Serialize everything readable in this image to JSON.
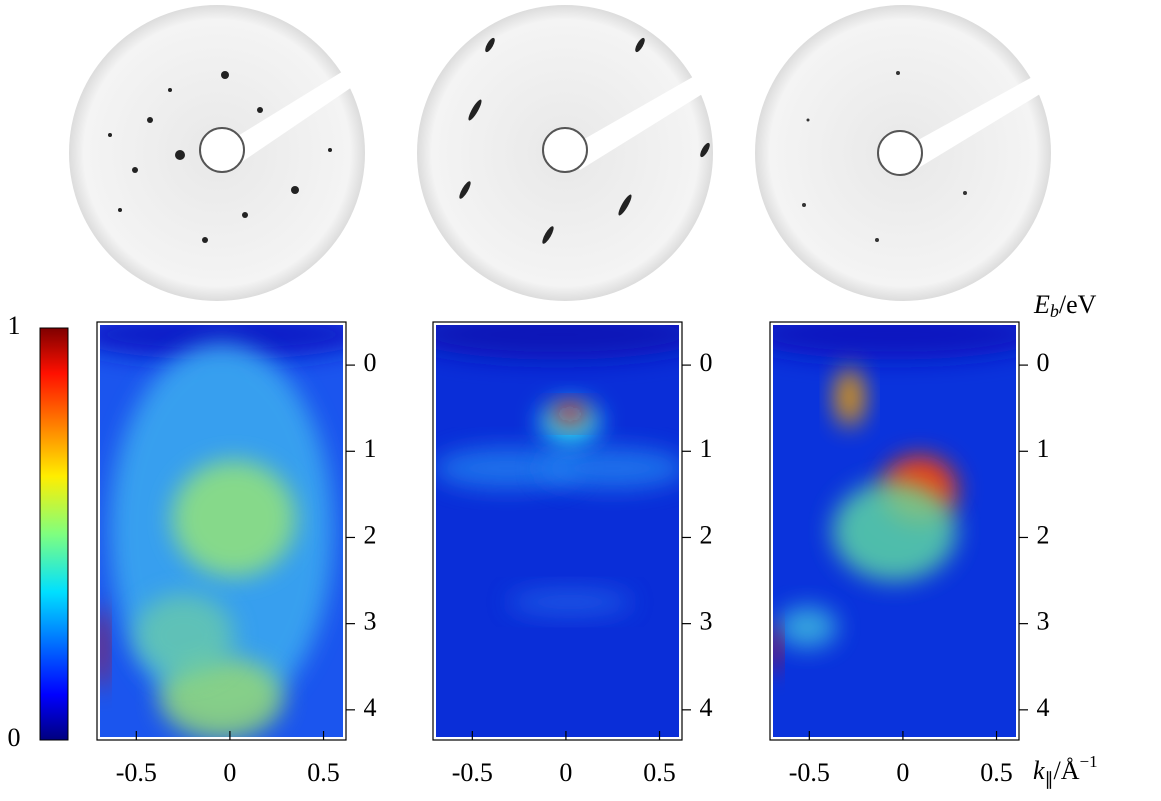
{
  "chart_data": [
    {
      "type": "colorbar",
      "ylim": [
        0,
        1
      ],
      "yticks": [
        0,
        1
      ]
    },
    {
      "type": "heatmap",
      "xlim": [
        -0.71,
        0.62
      ],
      "ylim": [
        4.35,
        -0.5
      ],
      "xticks": [
        -0.5,
        0,
        0.5
      ],
      "yticks": [
        0,
        1,
        2,
        3,
        4
      ]
    },
    {
      "type": "heatmap",
      "xlim": [
        -0.71,
        0.62
      ],
      "ylim": [
        4.35,
        -0.5
      ],
      "xticks": [
        -0.5,
        0,
        0.5
      ],
      "yticks": [
        0,
        1,
        2,
        3,
        4
      ]
    },
    {
      "type": "heatmap",
      "xlim": [
        -0.71,
        0.62
      ],
      "ylim": [
        4.35,
        -0.5
      ],
      "xticks": [
        -0.5,
        0,
        0.5
      ],
      "yticks": [
        0,
        1,
        2,
        3,
        4
      ],
      "ylabel": {
        "symbol": "E",
        "subscript": "b",
        "unit": "/eV"
      },
      "xlabel": {
        "symbol": "k",
        "subscript": "∥",
        "unit": "/Å",
        "exponent": "−1"
      }
    }
  ]
}
